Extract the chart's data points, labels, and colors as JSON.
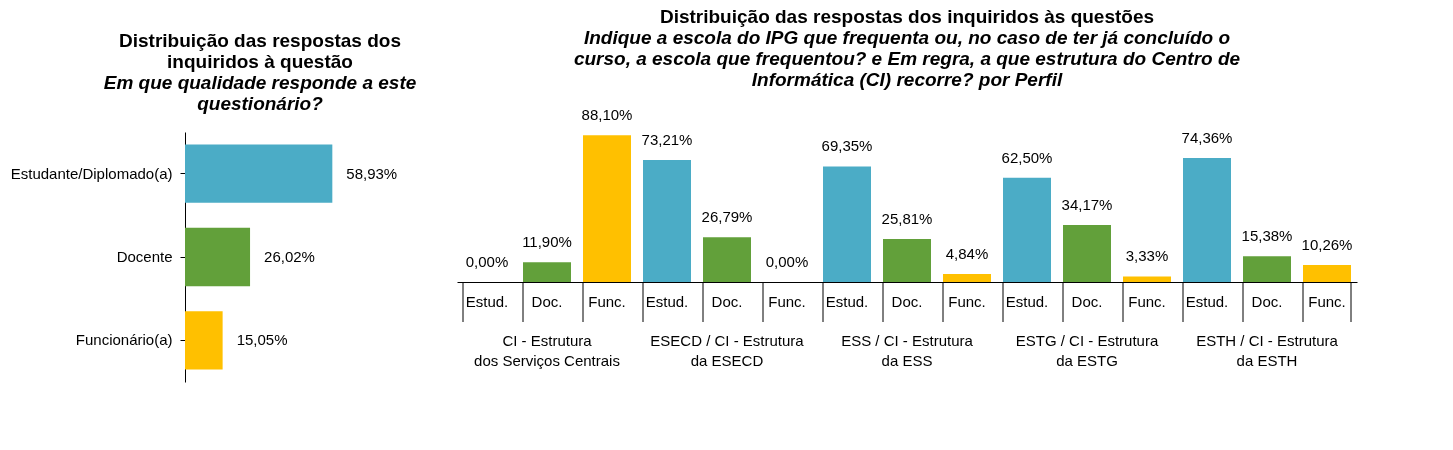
{
  "chart_data": [
    {
      "type": "bar",
      "orientation": "horizontal",
      "title": "Distribuição das respostas dos inquiridos à questão",
      "subtitle": "Em que qualidade responde a este questionário?",
      "categories": [
        "Estudante/Diplomado(a)",
        "Docente",
        "Funcionário(a)"
      ],
      "values": [
        58.93,
        26.02,
        15.05
      ],
      "colors": [
        "#4bacc6",
        "#62a03a",
        "#ffc000"
      ],
      "value_labels": [
        "58,93%",
        "26,02%",
        "15,05%"
      ],
      "grid": false,
      "legend": false
    },
    {
      "type": "bar",
      "title": "Distribuição das respostas dos inquiridos às questões",
      "subtitle": "Indique a escola do IPG que frequenta ou, no caso de ter já concluído o curso, a escola que frequentou? e Em regra, a que estrutura do Centro de Informática (CI) recorre? por Perfil",
      "categories": [
        "Estud.",
        "Doc.",
        "Func.",
        "Estud.",
        "Doc.",
        "Func.",
        "Estud.",
        "Doc.",
        "Func.",
        "Estud.",
        "Doc.",
        "Func.",
        "Estud.",
        "Doc.",
        "Func."
      ],
      "values": [
        0.0,
        11.9,
        88.1,
        73.21,
        26.79,
        0.0,
        69.35,
        25.81,
        4.84,
        62.5,
        34.17,
        3.33,
        74.36,
        15.38,
        10.26
      ],
      "colors": [
        "#4bacc6",
        "#62a03a",
        "#ffc000",
        "#4bacc6",
        "#62a03a",
        "#ffc000",
        "#4bacc6",
        "#62a03a",
        "#ffc000",
        "#4bacc6",
        "#62a03a",
        "#ffc000",
        "#4bacc6",
        "#62a03a",
        "#ffc000"
      ],
      "value_labels": [
        "0,00%",
        "11,90%",
        "88,10%",
        "73,21%",
        "26,79%",
        "0,00%",
        "69,35%",
        "25,81%",
        "4,84%",
        "62,50%",
        "34,17%",
        "3,33%",
        "74,36%",
        "15,38%",
        "10,26%"
      ],
      "annotations": [
        "CI - Estrutura\ndos Serviços Centrais",
        "ESECD / CI - Estrutura\nda ESECD",
        "ESS / CI - Estrutura\nda ESS",
        "ESTG / CI - Estrutura\nda ESTG",
        "ESTH / CI - Estrutura\nda ESTH"
      ],
      "grid": false,
      "legend": false
    }
  ]
}
